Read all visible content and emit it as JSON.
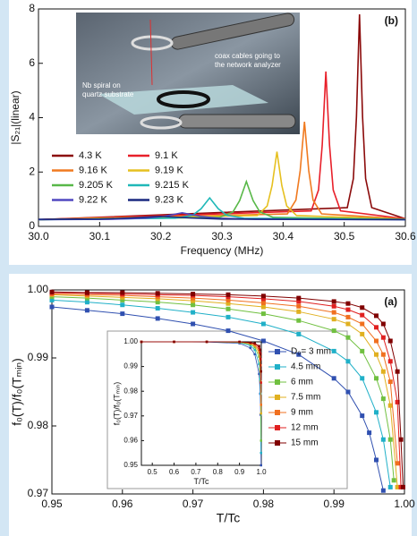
{
  "chart_data": [
    {
      "type": "line",
      "panel_label": "(b)",
      "xlabel": "Frequency (MHz)",
      "ylabel": "|S₂₁|(linear)",
      "xlim": [
        30.0,
        30.6
      ],
      "ylim": [
        0,
        8
      ],
      "xticks": [
        {
          "value": 30,
          "label": "30.0"
        },
        30.1,
        30.2,
        30.3,
        30.4,
        30.5,
        30.6
      ],
      "yticks": [
        0,
        2,
        4,
        6,
        8
      ],
      "annotations": [
        "coax cables going to",
        "the network analyzer",
        "Nb spiral on",
        "quartz substrate"
      ],
      "legend": "lower left",
      "series": [
        {
          "name": "4.3 K",
          "color": "#8b0a0a",
          "x": [
            30.0,
            30.505,
            30.515,
            30.52,
            30.525,
            30.53,
            30.535,
            30.545,
            30.6
          ],
          "values": [
            0.25,
            0.69,
            1.76,
            4.03,
            7.8,
            4.03,
            1.76,
            0.69,
            0.28
          ]
        },
        {
          "name": "9.1 K",
          "color": "#e8202a",
          "x": [
            30.0,
            30.446,
            30.458,
            30.464,
            30.47,
            30.476,
            30.482,
            30.494,
            30.6
          ],
          "values": [
            0.25,
            0.57,
            1.34,
            2.98,
            5.7,
            2.98,
            1.34,
            0.57,
            0.28
          ]
        },
        {
          "name": "9.16 K",
          "color": "#f07a20",
          "x": [
            30.0,
            30.407,
            30.421,
            30.428,
            30.435,
            30.442,
            30.449,
            30.463,
            30.6
          ],
          "values": [
            0.25,
            0.46,
            0.97,
            2.05,
            3.85,
            2.05,
            0.97,
            0.46,
            0.27
          ]
        },
        {
          "name": "9.19 K",
          "color": "#e6c020",
          "x": [
            30.0,
            30.358,
            30.374,
            30.382,
            30.39,
            30.398,
            30.406,
            30.422,
            30.6
          ],
          "values": [
            0.25,
            0.4,
            0.75,
            1.5,
            2.75,
            1.5,
            0.75,
            0.4,
            0.26
          ]
        },
        {
          "name": "9.205 K",
          "color": "#58b848",
          "x": [
            30.0,
            30.296,
            30.318,
            30.329,
            30.34,
            30.351,
            30.362,
            30.384,
            30.6
          ],
          "values": [
            0.25,
            0.33,
            0.53,
            0.95,
            1.65,
            0.95,
            0.53,
            0.33,
            0.26
          ]
        },
        {
          "name": "9.215 K",
          "color": "#20b8b8",
          "x": [
            30.0,
            30.224,
            30.252,
            30.266,
            30.28,
            30.294,
            30.308,
            30.336,
            30.6
          ],
          "values": [
            0.25,
            0.3,
            0.41,
            0.65,
            1.05,
            0.65,
            0.41,
            0.3,
            0.25
          ]
        },
        {
          "name": "9.22 K",
          "color": "#5048c0",
          "x": [
            30.0,
            30.115,
            30.175,
            30.205,
            30.235,
            30.265,
            30.295,
            30.355,
            30.6
          ],
          "values": [
            0.25,
            0.26,
            0.3,
            0.37,
            0.5,
            0.37,
            0.3,
            0.26,
            0.25
          ]
        },
        {
          "name": "9.23 K",
          "color": "#1a2a80",
          "x": [
            30.0,
            30.1,
            30.15,
            30.2,
            30.25,
            30.3,
            30.4,
            30.6
          ],
          "values": [
            0.26,
            0.27,
            0.31,
            0.37,
            0.31,
            0.27,
            0.26,
            0.25
          ]
        }
      ]
    },
    {
      "type": "line",
      "panel_label": "(a)",
      "xlabel": "T/Tc",
      "ylabel": "f₀(T)/f₀(Tₘᵢₙ)",
      "markers": "square",
      "xlim": [
        0.95,
        1.0
      ],
      "ylim": [
        0.97,
        1.0
      ],
      "xticks": [
        0.95,
        0.96,
        0.97,
        0.98,
        0.99,
        {
          "value": 1,
          "label": "1.00"
        }
      ],
      "yticks": [
        0.97,
        0.98,
        0.99,
        {
          "value": 1,
          "label": "1.00"
        }
      ],
      "series": [
        {
          "name": "D₀= 3 mm",
          "color": "#3050b0",
          "x": [
            0.95,
            0.955,
            0.96,
            0.965,
            0.97,
            0.975,
            0.98,
            0.985,
            0.99,
            0.992,
            0.994,
            0.995,
            0.996,
            0.997
          ],
          "values": [
            0.9975,
            0.997,
            0.9965,
            0.9958,
            0.995,
            0.994,
            0.9925,
            0.9905,
            0.987,
            0.985,
            0.9815,
            0.979,
            0.975,
            0.9705
          ]
        },
        {
          "name": "4.5 mm",
          "color": "#20b0c8",
          "x": [
            0.95,
            0.955,
            0.96,
            0.965,
            0.97,
            0.975,
            0.98,
            0.985,
            0.99,
            0.992,
            0.994,
            0.996,
            0.997,
            0.998
          ],
          "values": [
            0.9985,
            0.9982,
            0.9978,
            0.9973,
            0.9967,
            0.996,
            0.995,
            0.9935,
            0.991,
            0.9895,
            0.987,
            0.982,
            0.978,
            0.971
          ]
        },
        {
          "name": "6 mm",
          "color": "#70c040",
          "x": [
            0.95,
            0.955,
            0.96,
            0.965,
            0.97,
            0.975,
            0.98,
            0.985,
            0.99,
            0.992,
            0.994,
            0.996,
            0.997,
            0.998,
            0.9985
          ],
          "values": [
            0.999,
            0.9988,
            0.9985,
            0.9982,
            0.9978,
            0.9972,
            0.9965,
            0.9955,
            0.994,
            0.993,
            0.991,
            0.987,
            0.984,
            0.978,
            0.972
          ]
        },
        {
          "name": "7.5 mm",
          "color": "#e0b020",
          "x": [
            0.95,
            0.955,
            0.96,
            0.965,
            0.97,
            0.975,
            0.98,
            0.985,
            0.99,
            0.992,
            0.994,
            0.996,
            0.997,
            0.998,
            0.999
          ],
          "values": [
            0.9993,
            0.9991,
            0.9989,
            0.9987,
            0.9984,
            0.998,
            0.9975,
            0.9968,
            0.9957,
            0.995,
            0.9935,
            0.9905,
            0.988,
            0.983,
            0.971
          ]
        },
        {
          "name": "9 mm",
          "color": "#f07020",
          "x": [
            0.95,
            0.955,
            0.96,
            0.965,
            0.97,
            0.975,
            0.98,
            0.985,
            0.99,
            0.992,
            0.994,
            0.996,
            0.997,
            0.998,
            0.999
          ],
          "values": [
            0.9994,
            0.9993,
            0.9992,
            0.999,
            0.9988,
            0.9985,
            0.9981,
            0.9976,
            0.9967,
            0.996,
            0.995,
            0.9925,
            0.9905,
            0.9865,
            0.9745
          ]
        },
        {
          "name": "12 mm",
          "color": "#e02020",
          "x": [
            0.95,
            0.955,
            0.96,
            0.965,
            0.97,
            0.975,
            0.98,
            0.985,
            0.99,
            0.992,
            0.994,
            0.996,
            0.997,
            0.998,
            0.999,
            0.9995
          ],
          "values": [
            0.9996,
            0.9995,
            0.9994,
            0.9993,
            0.9992,
            0.999,
            0.9987,
            0.9983,
            0.9976,
            0.9971,
            0.9963,
            0.9945,
            0.993,
            0.9895,
            0.9835,
            0.971
          ]
        },
        {
          "name": "15 mm",
          "color": "#800000",
          "x": [
            0.95,
            0.955,
            0.96,
            0.965,
            0.97,
            0.975,
            0.98,
            0.985,
            0.99,
            0.992,
            0.994,
            0.996,
            0.997,
            0.998,
            0.999,
            0.9995,
            0.9998
          ],
          "values": [
            0.9997,
            0.9996,
            0.9996,
            0.9995,
            0.9994,
            0.9993,
            0.9991,
            0.9988,
            0.9983,
            0.998,
            0.9974,
            0.9962,
            0.995,
            0.9925,
            0.988,
            0.978,
            0.971
          ]
        }
      ]
    },
    {
      "type": "line",
      "xlabel": "T/Tc",
      "ylabel": "f₀(T)/f₀(Tₘᵢₙ)",
      "markers": "square",
      "xlim": [
        0.45,
        1.0
      ],
      "ylim": [
        0.95,
        1.0
      ],
      "xticks": [
        0.5,
        0.6,
        0.7,
        0.8,
        0.9,
        {
          "value": 1,
          "label": "1.0"
        }
      ],
      "yticks": [
        0.95,
        0.96,
        0.97,
        0.98,
        0.99,
        {
          "value": 1,
          "label": "1.00"
        }
      ],
      "x": [
        0.45,
        0.6,
        0.75,
        0.9,
        0.95,
        0.97,
        0.99,
        0.995,
        0.997,
        0.999
      ],
      "series": [
        {
          "color": "#3050b0",
          "values": [
            1.0,
            1.0,
            0.9999,
            0.9994,
            0.9975,
            0.995,
            0.987,
            0.979,
            0.9705,
            0.95
          ]
        },
        {
          "color": "#20b0c8",
          "values": [
            1.0,
            1.0,
            1.0,
            0.9997,
            0.9985,
            0.9967,
            0.991,
            0.985,
            0.979,
            0.955
          ]
        },
        {
          "color": "#70c040",
          "values": [
            1.0,
            1.0,
            1.0,
            0.9998,
            0.999,
            0.9978,
            0.994,
            0.989,
            0.984,
            0.96
          ]
        },
        {
          "color": "#e0b020",
          "values": [
            1.0,
            1.0,
            1.0,
            0.9999,
            0.9993,
            0.9984,
            0.9957,
            0.9925,
            0.988,
            0.971
          ]
        },
        {
          "color": "#f07020",
          "values": [
            1.0,
            1.0,
            1.0,
            0.9999,
            0.9994,
            0.9988,
            0.9967,
            0.994,
            0.9905,
            0.9745
          ]
        },
        {
          "color": "#e02020",
          "values": [
            1.0,
            1.0,
            1.0,
            1.0,
            0.9996,
            0.9992,
            0.9976,
            0.9955,
            0.993,
            0.9835
          ]
        },
        {
          "color": "#800000",
          "values": [
            1.0,
            1.0,
            1.0,
            1.0,
            0.9997,
            0.9994,
            0.9983,
            0.9968,
            0.995,
            0.988
          ]
        }
      ]
    }
  ]
}
